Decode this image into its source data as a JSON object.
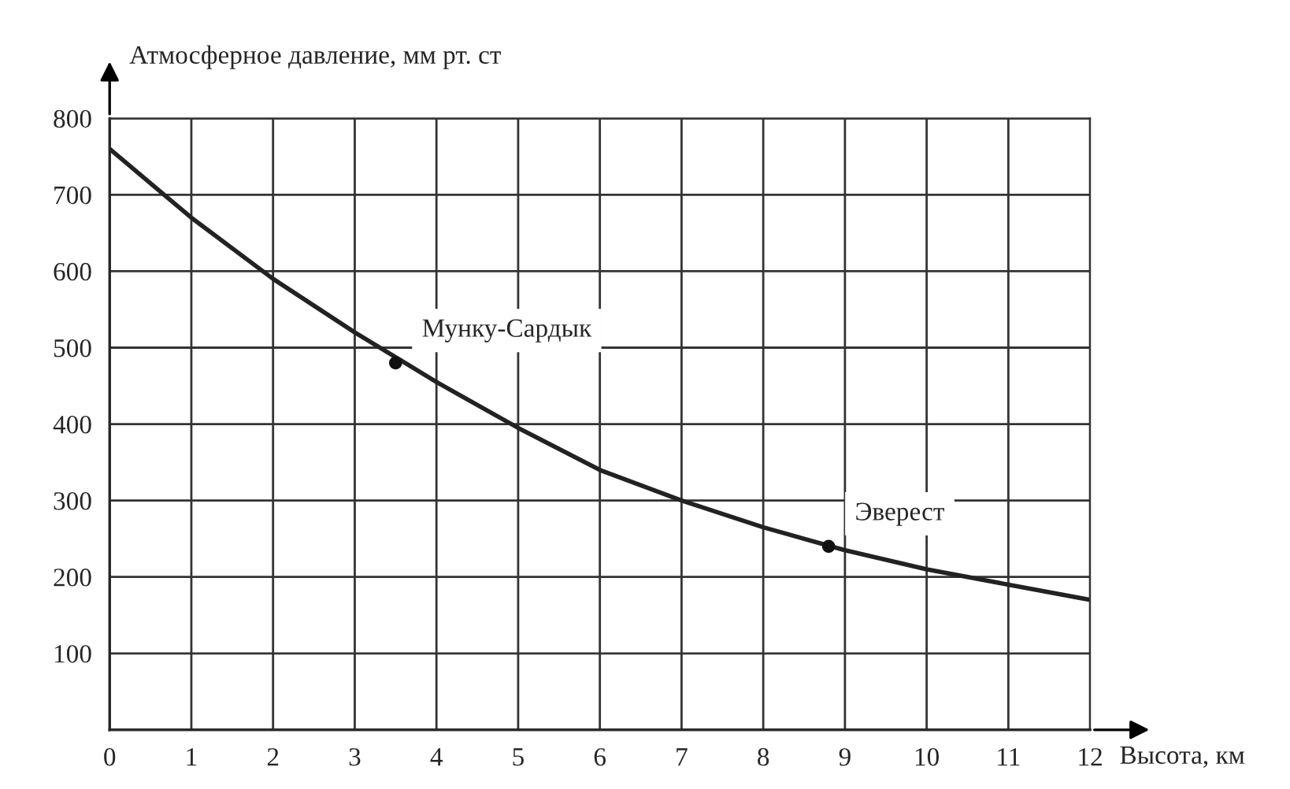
{
  "chart_data": {
    "type": "line",
    "xlabel": "Высота, км",
    "ylabel": "Атмосферное давление, мм рт. ст",
    "x": [
      0,
      1,
      2,
      3,
      4,
      5,
      6,
      7,
      8,
      9,
      10,
      11,
      12
    ],
    "series": [
      {
        "color": "#222222",
        "values": [
          760,
          670,
          590,
          520,
          455,
          395,
          340,
          300,
          265,
          235,
          210,
          190,
          170
        ]
      },
      {
        "type": "scatter",
        "name": "Мунку-Сардык",
        "color": "#111111",
        "x": [
          3.5
        ],
        "values": [
          480
        ]
      },
      {
        "type": "scatter",
        "name": "Эверест",
        "color": "#111111",
        "x": [
          8.8
        ],
        "values": [
          240
        ]
      }
    ],
    "xlim": [
      0,
      12
    ],
    "ylim": [
      0,
      800
    ],
    "xticks": [
      0,
      1,
      2,
      3,
      4,
      5,
      6,
      7,
      8,
      9,
      10,
      11,
      12
    ],
    "yticks": [
      {
        "value": 0,
        "label": null
      },
      100,
      200,
      300,
      400,
      500,
      600,
      700,
      800
    ],
    "grid": true,
    "legend": false
  }
}
